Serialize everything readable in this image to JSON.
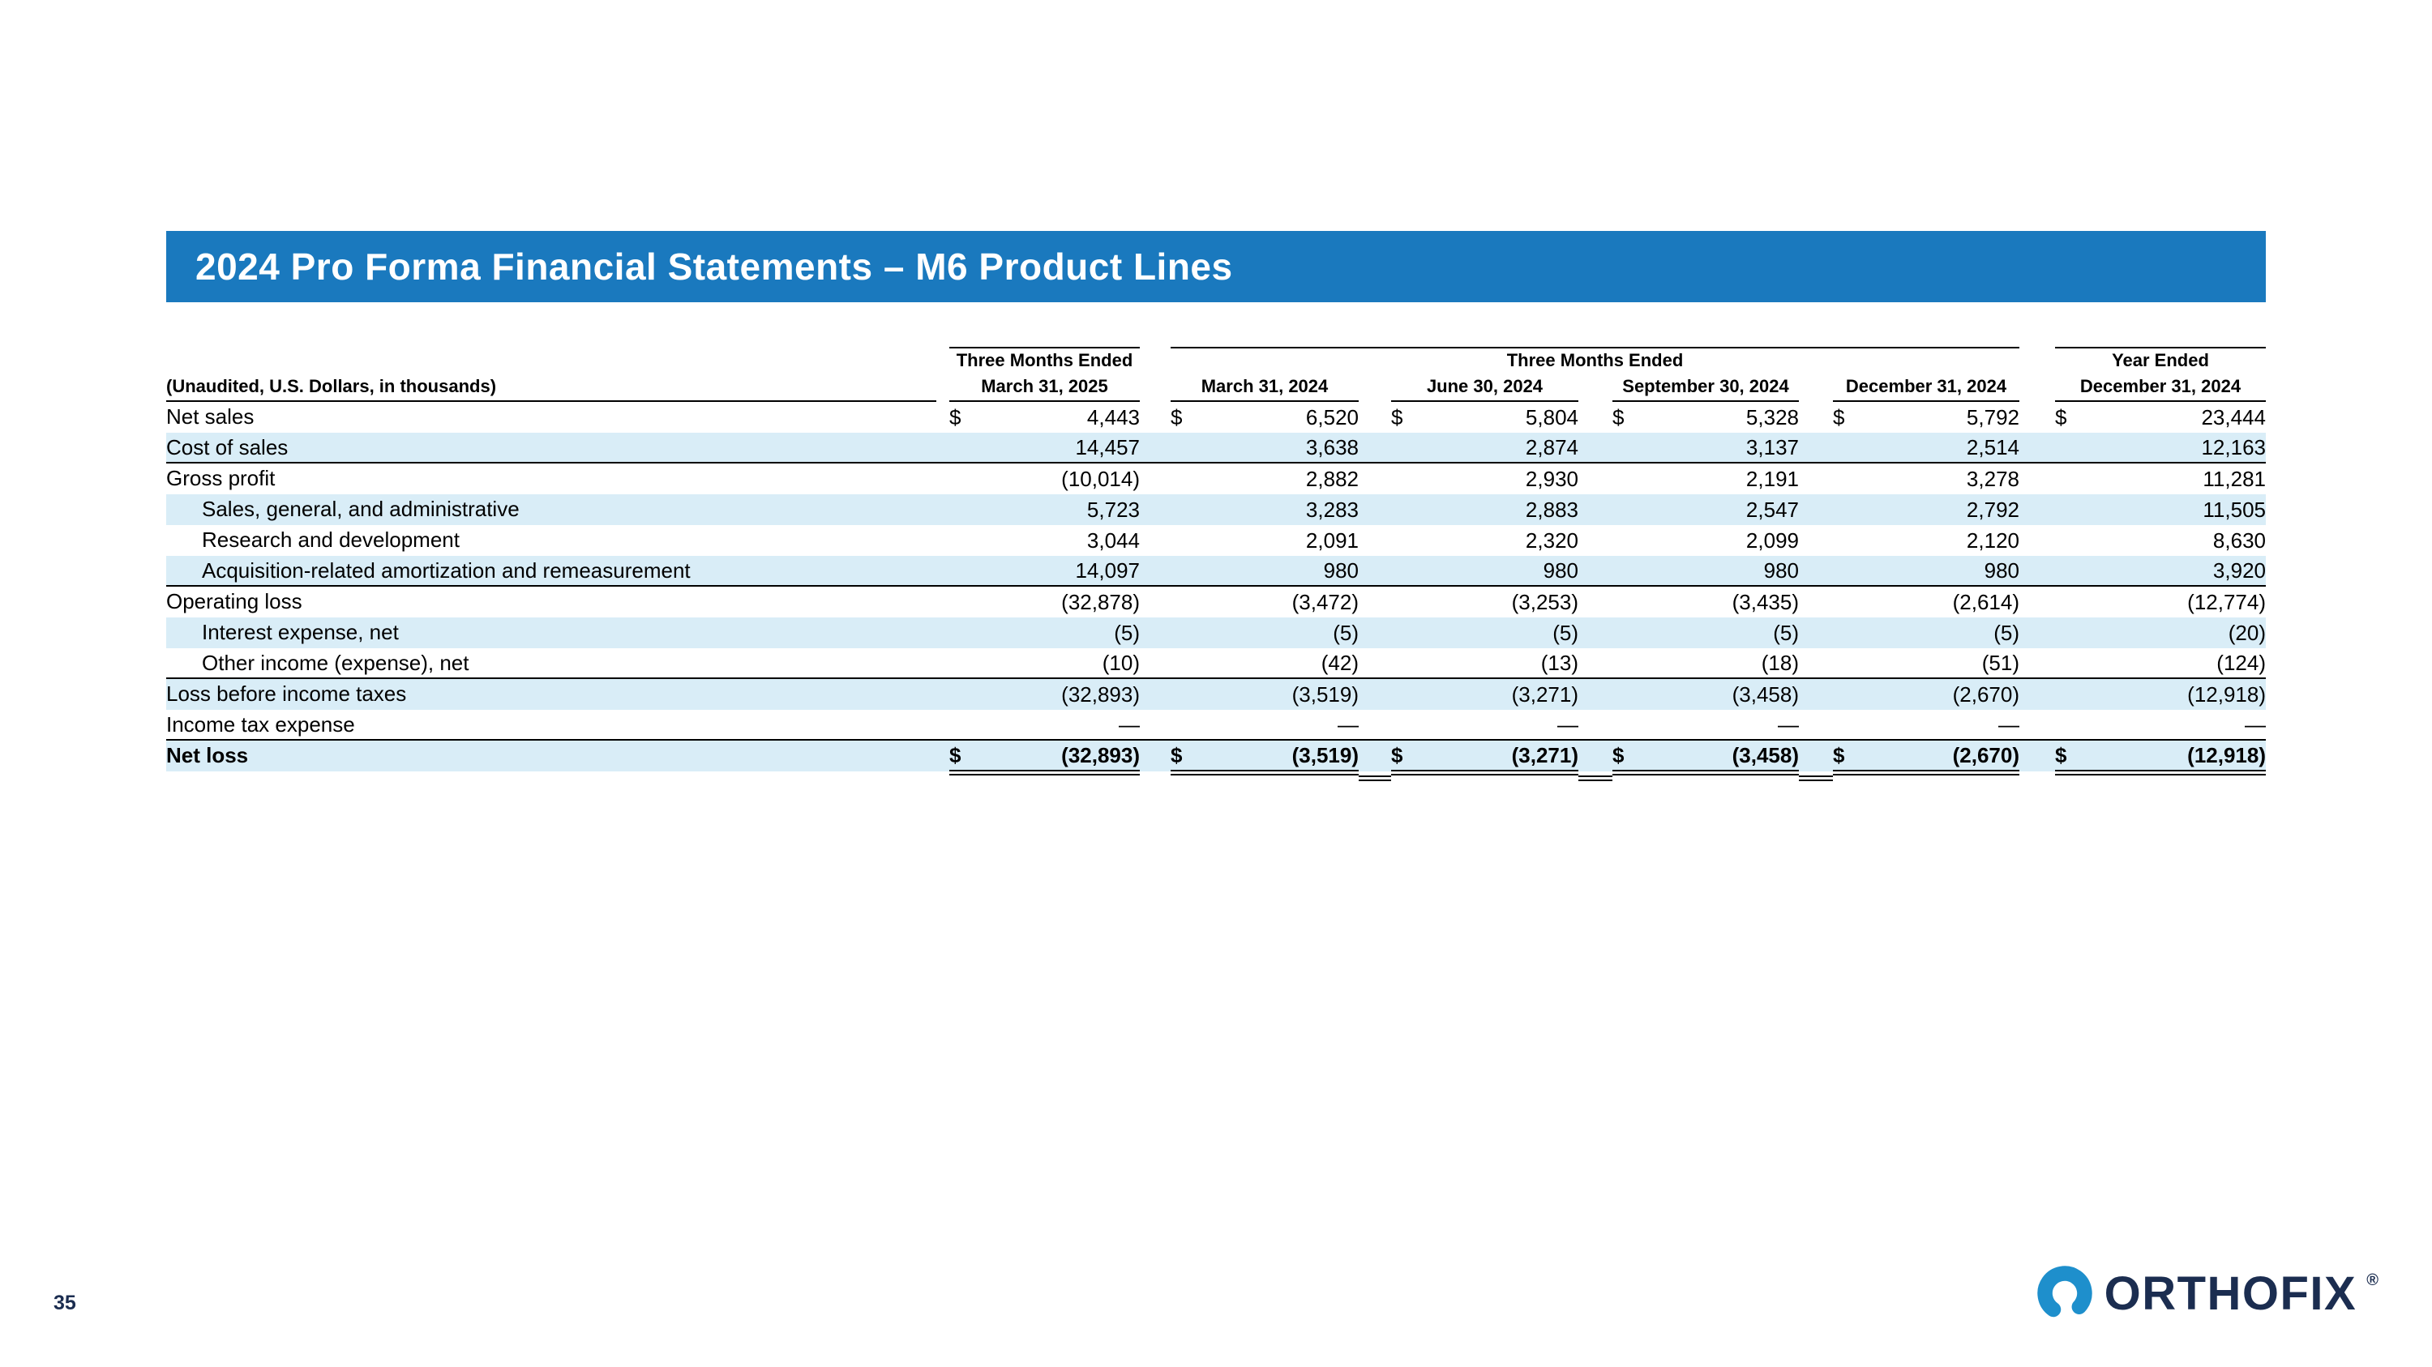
{
  "title": "2024 Pro Forma Financial Statements – M6 Product Lines",
  "colors": {
    "header_bar": "#1A79BE",
    "stripe": "#D9EDF7",
    "logo_navy": "#1B2D50",
    "logo_blue": "#1E8FCC"
  },
  "table": {
    "note": "(Unaudited, U.S. Dollars, in thousands)",
    "groups": [
      {
        "label": "Three Months Ended",
        "span": 1
      },
      {
        "label": "Three Months Ended",
        "span": 4
      },
      {
        "label": "Year Ended",
        "span": 1
      }
    ],
    "columns": [
      "March 31, 2025",
      "March 31, 2024",
      "June 30, 2024",
      "September 30, 2024",
      "December 31, 2024",
      "December 31, 2024"
    ],
    "rows": [
      {
        "label": "Net sales",
        "values": [
          "4,443",
          "6,520",
          "5,804",
          "5,328",
          "5,792",
          "23,444"
        ],
        "dollar": true
      },
      {
        "label": "Cost of sales",
        "values": [
          "14,457",
          "3,638",
          "2,874",
          "3,137",
          "2,514",
          "12,163"
        ],
        "rule": "single"
      },
      {
        "label": "Gross profit",
        "values": [
          "(10,014)",
          "2,882",
          "2,930",
          "2,191",
          "3,278",
          "11,281"
        ]
      },
      {
        "label": "Sales, general, and administrative",
        "values": [
          "5,723",
          "3,283",
          "2,883",
          "2,547",
          "2,792",
          "11,505"
        ],
        "indent": true
      },
      {
        "label": "Research and development",
        "values": [
          "3,044",
          "2,091",
          "2,320",
          "2,099",
          "2,120",
          "8,630"
        ],
        "indent": true
      },
      {
        "label": "Acquisition-related amortization and remeasurement",
        "values": [
          "14,097",
          "980",
          "980",
          "980",
          "980",
          "3,920"
        ],
        "indent": true,
        "rule": "single"
      },
      {
        "label": "Operating loss",
        "values": [
          "(32,878)",
          "(3,472)",
          "(3,253)",
          "(3,435)",
          "(2,614)",
          "(12,774)"
        ]
      },
      {
        "label": "Interest expense, net",
        "values": [
          "(5)",
          "(5)",
          "(5)",
          "(5)",
          "(5)",
          "(20)"
        ],
        "indent": true
      },
      {
        "label": "Other income (expense), net",
        "values": [
          "(10)",
          "(42)",
          "(13)",
          "(18)",
          "(51)",
          "(124)"
        ],
        "indent": true,
        "rule": "single"
      },
      {
        "label": "Loss before income taxes",
        "values": [
          "(32,893)",
          "(3,519)",
          "(3,271)",
          "(3,458)",
          "(2,670)",
          "(12,918)"
        ]
      },
      {
        "label": "Income tax expense",
        "values": [
          "—",
          "—",
          "—",
          "—",
          "—",
          "—"
        ],
        "rule": "single"
      },
      {
        "label": "Net loss",
        "values": [
          "(32,893)",
          "(3,519)",
          "(3,271)",
          "(3,458)",
          "(2,670)",
          "(12,918)"
        ],
        "dollar": true,
        "bold": true,
        "rule": "double"
      }
    ]
  },
  "footer": {
    "page_number": "35",
    "logo_text": "ORTHOFIX",
    "logo_reg": "®"
  }
}
